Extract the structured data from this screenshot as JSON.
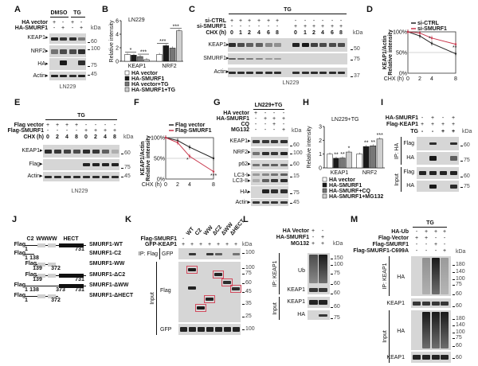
{
  "figure": {
    "A": {
      "label": "A",
      "header": [
        "DMSO",
        "TG"
      ],
      "rows": [
        {
          "name": "HA vector",
          "signs": [
            "+",
            "-",
            "+",
            "-"
          ]
        },
        {
          "name": "HA-SMURF1",
          "signs": [
            "-",
            "+",
            "-",
            "+"
          ]
        }
      ],
      "kda": "kDa",
      "blots": [
        {
          "name": "KEAP1",
          "mw": [
            "60"
          ]
        },
        {
          "name": "NRF2",
          "mw": [
            "100"
          ]
        },
        {
          "name": "HA",
          "mw": [
            "75"
          ]
        },
        {
          "name": "Actin",
          "mw": [
            "45"
          ]
        }
      ],
      "cell": "LN229"
    },
    "B": {
      "label": "B"
    },
    "C": {
      "label": "C",
      "group": "TG",
      "rows": [
        {
          "name": "si-CTRL",
          "signs": [
            "+",
            "+",
            "+",
            "+",
            "+",
            "+",
            "-",
            "-",
            "-",
            "-",
            "-",
            "-"
          ]
        },
        {
          "name": "si-SMURF1",
          "signs": [
            "-",
            "-",
            "-",
            "-",
            "-",
            "-",
            "+",
            "+",
            "+",
            "+",
            "+",
            "+"
          ]
        },
        {
          "name": "CHX (h)",
          "signs": [
            "0",
            "1",
            "2",
            "4",
            "6",
            "8",
            "0",
            "1",
            "2",
            "4",
            "6",
            "8"
          ]
        }
      ],
      "kda": "kDa",
      "blots": [
        {
          "name": "KEAP1",
          "mw": [
            "50"
          ]
        },
        {
          "name": "SMURF1",
          "mw": [
            "75"
          ]
        },
        {
          "name": "Actin",
          "mw": [
            "37"
          ]
        }
      ],
      "cell": "LN229"
    },
    "D": {
      "label": "D"
    },
    "E": {
      "label": "E",
      "group": "TG",
      "rows": [
        {
          "name": "Flag vector",
          "signs": [
            "+",
            "+",
            "+",
            "+",
            "-",
            "-",
            "-",
            "-"
          ]
        },
        {
          "name": "Flag-SMURF1",
          "signs": [
            "-",
            "-",
            "-",
            "-",
            "+",
            "+",
            "+",
            "+"
          ]
        },
        {
          "name": "CHX (h)",
          "signs": [
            "0",
            "2",
            "4",
            "8",
            "0",
            "2",
            "4",
            "8"
          ]
        }
      ],
      "kda": "kDa",
      "blots": [
        {
          "name": "KEAP1",
          "mw": [
            "60"
          ]
        },
        {
          "name": "Flag",
          "mw": [
            "75"
          ]
        },
        {
          "name": "Actin",
          "mw": [
            "45"
          ]
        }
      ],
      "cell": "LN229"
    },
    "F": {
      "label": "F"
    },
    "G": {
      "label": "G",
      "group": "LN229+TG",
      "rows": [
        {
          "name": "HA vector",
          "signs": [
            "+",
            "-",
            "-",
            "-"
          ]
        },
        {
          "name": "HA-SMURF1",
          "signs": [
            "-",
            "+",
            "+",
            "+"
          ]
        },
        {
          "name": "CQ",
          "signs": [
            "-",
            "-",
            "+",
            "-"
          ]
        },
        {
          "name": "MG132",
          "signs": [
            "-",
            "-",
            "-",
            "+"
          ]
        }
      ],
      "kda": "kDa",
      "blots": [
        {
          "name": "KEAP1",
          "mw": [
            "60"
          ]
        },
        {
          "name": "NRF2",
          "mw": [
            "100"
          ]
        },
        {
          "name": "p62",
          "mw": [
            "60"
          ]
        },
        {
          "name": "LC3-I",
          "mw": [
            "15"
          ]
        },
        {
          "name": "LC3-II",
          "mw": []
        },
        {
          "name": "HA",
          "mw": [
            "75"
          ]
        },
        {
          "name": "Actin",
          "mw": [
            "45"
          ]
        }
      ]
    },
    "H": {
      "label": "H"
    },
    "I": {
      "label": "I",
      "rows": [
        {
          "name": "HA-SMURF1",
          "signs": [
            "-",
            "+",
            "-",
            "+"
          ]
        },
        {
          "name": "Flag-KEAP1",
          "signs": [
            "+",
            "+",
            "+",
            "+"
          ]
        },
        {
          "name": "TG",
          "signs": [
            "-",
            "-",
            "+",
            "+"
          ]
        }
      ],
      "kda": "kDa",
      "sections": [
        {
          "name": "IP: HA",
          "blots": [
            {
              "name": "Flag",
              "mw": [
                "60"
              ]
            },
            {
              "name": "HA",
              "mw": [
                "75"
              ]
            }
          ]
        },
        {
          "name": "Input",
          "blots": [
            {
              "name": "Flag",
              "mw": [
                "60"
              ]
            },
            {
              "name": "HA",
              "mw": [
                "75"
              ]
            }
          ]
        }
      ]
    },
    "J": {
      "label": "J",
      "tag": "Flag",
      "domains": [
        "C2",
        "WW",
        "WW",
        "HECT"
      ],
      "constructs": [
        {
          "name": "SMURF1-WT",
          "numbers": [
            "1",
            "731"
          ]
        },
        {
          "name": "SMURF1-C2",
          "numbers": [
            "1",
            "138"
          ]
        },
        {
          "name": "SMURF1-WW",
          "numbers": [
            "139",
            "372"
          ]
        },
        {
          "name": "SMURF1-ΔC2",
          "numbers": [
            "139",
            "731"
          ]
        },
        {
          "name": "SMURF1-ΔWW",
          "numbers": [
            "1",
            "138",
            "373",
            "731"
          ]
        },
        {
          "name": "SMURF1-ΔHECT",
          "numbers": [
            "1",
            "372"
          ]
        }
      ]
    },
    "K": {
      "label": "K",
      "rows": [
        {
          "name": "Flag-SMURF1",
          "signs": [
            "-",
            "WT",
            "C2",
            "WW",
            "ΔC2",
            "ΔWW",
            "ΔHECT"
          ]
        },
        {
          "name": "GFP-KEAP1",
          "signs": [
            "+",
            "+",
            "+",
            "+",
            "+",
            "+",
            "+"
          ]
        }
      ],
      "kda": "kDa",
      "sections": [
        {
          "name": "IP: Flag",
          "blots": [
            {
              "name": "GFP",
              "mw": [
                "100"
              ]
            }
          ]
        },
        {
          "name": "Input",
          "blots": [
            {
              "name": "Flag",
              "mw": [
                "100",
                "75",
                "60",
                "45",
                "35",
                "25"
              ]
            },
            {
              "name": "GFP",
              "mw": [
                "100"
              ]
            }
          ]
        }
      ]
    },
    "L": {
      "label": "L",
      "rows": [
        {
          "name": "HA Vector",
          "signs": [
            "+",
            "-"
          ]
        },
        {
          "name": "HA-SMURF1",
          "signs": [
            "-",
            "+"
          ]
        },
        {
          "name": "MG132",
          "signs": [
            "+",
            "+"
          ]
        }
      ],
      "kda": "kDa",
      "sections": [
        {
          "name": "IP: KEAP1",
          "blots": [
            {
              "name": "Ub",
              "mw": [
                "150",
                "100",
                "75",
                "60"
              ]
            },
            {
              "name": "KEAP1",
              "mw": [
                "60"
              ]
            }
          ]
        },
        {
          "name": "Input",
          "blots": [
            {
              "name": "KEAP1",
              "mw": [
                "60"
              ]
            },
            {
              "name": "HA",
              "mw": [
                "75"
              ]
            }
          ]
        }
      ]
    },
    "M": {
      "label": "M",
      "group": "TG",
      "rows": [
        {
          "name": "HA-Ub",
          "signs": [
            "-",
            "+",
            "+",
            "+"
          ]
        },
        {
          "name": "Flag-Vector",
          "signs": [
            "+",
            "+",
            "-",
            "-"
          ]
        },
        {
          "name": "Flag-SMURF1",
          "signs": [
            "-",
            "-",
            "+",
            "-"
          ]
        },
        {
          "name": "Flag-SMURF1-C699A",
          "signs": [
            "-",
            "-",
            "-",
            "+"
          ]
        }
      ],
      "kda": "kDa",
      "sections": [
        {
          "name": "IP: KEAP1",
          "blots": [
            {
              "name": "HA",
              "mw": [
                "180",
                "140",
                "100",
                "75",
                "60"
              ]
            },
            {
              "name": "KEAP1",
              "mw": [
                "60"
              ]
            }
          ]
        },
        {
          "name": "Input",
          "blots": [
            {
              "name": "HA",
              "mw": [
                "180",
                "140",
                "100",
                "75",
                "60"
              ]
            },
            {
              "name": "KEAP1",
              "mw": [
                "60"
              ]
            }
          ]
        }
      ]
    },
    "watermark": "知乎 @逻辑神经科学"
  },
  "chart_data": [
    {
      "panel": "B",
      "type": "bar",
      "title": "LN229",
      "ylabel": "Relative intensity",
      "categories": [
        "KEAP1",
        "NRF2"
      ],
      "ylim": [
        0,
        6
      ],
      "yticks": [
        0,
        2,
        4,
        6
      ],
      "grid": false,
      "legend": "bottom",
      "series": [
        {
          "name": "HA vector",
          "values": [
            1.0,
            1.0
          ],
          "color": "#ffffff"
        },
        {
          "name": "HA-SMURF1",
          "values": [
            0.9,
            2.3
          ],
          "color": "#1a1a1a"
        },
        {
          "name": "HA vector+TG",
          "values": [
            0.7,
            1.95
          ],
          "color": "#777777"
        },
        {
          "name": "HA-SMURF1+TG",
          "values": [
            0.25,
            4.5
          ],
          "color": "#cfcfcf"
        }
      ],
      "significance": [
        {
          "category": 0,
          "bars": [
            0,
            1
          ],
          "label": "*"
        },
        {
          "category": 0,
          "bars": [
            2,
            3
          ],
          "label": "***"
        },
        {
          "category": 1,
          "bars": [
            0,
            1
          ],
          "label": "***"
        },
        {
          "category": 1,
          "bars": [
            2,
            3
          ],
          "label": "***"
        }
      ]
    },
    {
      "panel": "D",
      "type": "line",
      "ylabel_lines": [
        "KEAP1/Actin",
        "Relative intensity"
      ],
      "xlabel": "CHX (h)",
      "x": [
        0,
        2,
        4,
        8
      ],
      "xlim": [
        0,
        8
      ],
      "ylim": [
        0,
        100
      ],
      "yticks": [
        0,
        50,
        100
      ],
      "ytick_labels": [
        "0%",
        "50%",
        "100%"
      ],
      "legend": "top",
      "series": [
        {
          "name": "si-CTRL",
          "values": [
            100,
            90,
            72,
            47
          ],
          "color": "#222222"
        },
        {
          "name": "si-SMURF1",
          "values": [
            100,
            97,
            85,
            70
          ],
          "color": "#c8364b"
        }
      ],
      "annotations": [
        {
          "x": 4,
          "y": 80,
          "label": "*"
        },
        {
          "x": 8,
          "y": 58,
          "label": "**"
        }
      ]
    },
    {
      "panel": "F",
      "type": "line",
      "ylabel_lines": [
        "KEAP1/Actin",
        "Relative intensity"
      ],
      "xlabel": "CHX (h)",
      "x": [
        0,
        2,
        4,
        8
      ],
      "xlim": [
        0,
        8
      ],
      "ylim": [
        0,
        100
      ],
      "yticks": [
        0,
        50,
        100
      ],
      "ytick_labels": [
        "0%",
        "50%",
        "100%"
      ],
      "legend": "top",
      "series": [
        {
          "name": "Flag vector",
          "values": [
            100,
            93,
            77,
            50
          ],
          "color": "#222222"
        },
        {
          "name": "Flag-SMURF1",
          "values": [
            100,
            88,
            55,
            18
          ],
          "color": "#c8364b"
        }
      ],
      "annotations": [
        {
          "x": 4,
          "y": 42,
          "label": "*"
        },
        {
          "x": 8,
          "y": 4,
          "label": "***"
        }
      ]
    },
    {
      "panel": "H",
      "type": "bar",
      "title": "LN229+TG",
      "ylabel": "Relative intensity",
      "categories": [
        "KEAP1",
        "NRF2"
      ],
      "ylim": [
        0,
        3
      ],
      "yticks": [
        0,
        1,
        2,
        3
      ],
      "grid": false,
      "legend": "bottom",
      "series": [
        {
          "name": "HA vector",
          "values": [
            1.0,
            1.0
          ],
          "color": "#ffffff"
        },
        {
          "name": "HA-SMURF1",
          "values": [
            0.7,
            1.55
          ],
          "color": "#1a1a1a"
        },
        {
          "name": "HA-SMURF+CQ",
          "values": [
            0.72,
            1.6
          ],
          "color": "#777777"
        },
        {
          "name": "HA-SMURF1+MG132",
          "values": [
            1.15,
            2.1
          ],
          "color": "#cfcfcf"
        }
      ],
      "significance": [
        {
          "category": 0,
          "bar": 1,
          "label": "**"
        },
        {
          "category": 0,
          "bar": 2,
          "label": "**"
        },
        {
          "category": 0,
          "bar": 3,
          "label": "*"
        },
        {
          "category": 1,
          "bar": 1,
          "label": "**"
        },
        {
          "category": 1,
          "bar": 2,
          "label": "**"
        },
        {
          "category": 1,
          "bar": 3,
          "label": "***"
        }
      ]
    }
  ]
}
